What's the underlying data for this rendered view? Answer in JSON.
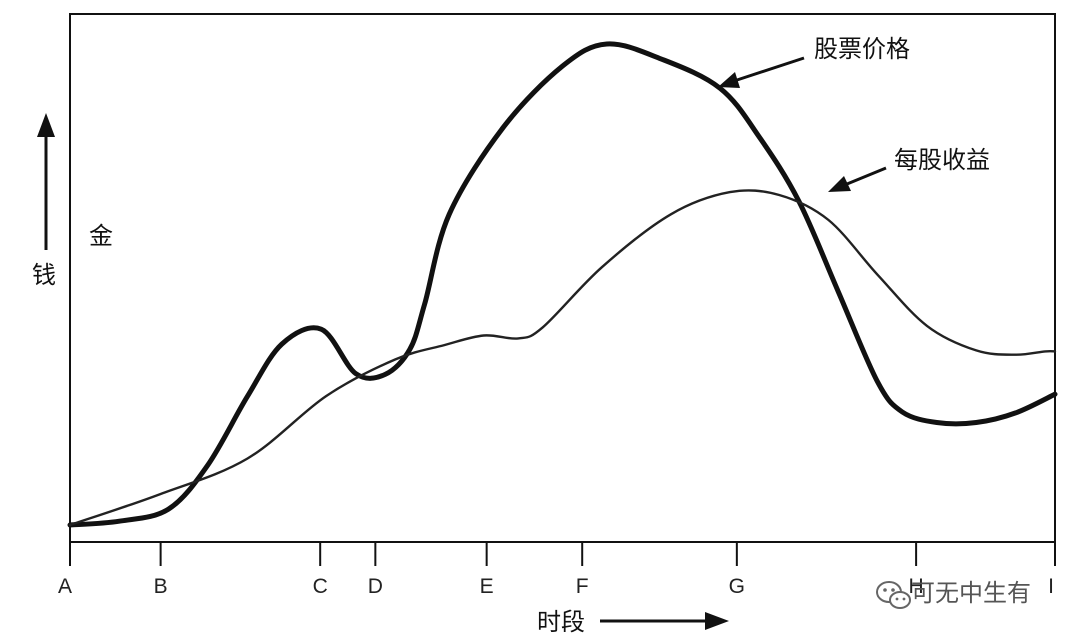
{
  "chart_data": {
    "type": "line",
    "title": "",
    "xlabel": "时段",
    "ylabel": "钱",
    "corner_label": "金",
    "categories": [
      "A",
      "B",
      "C",
      "D",
      "E",
      "F",
      "G",
      "H",
      "I"
    ],
    "x_ticks": [
      0,
      9.2,
      25.4,
      31,
      42.3,
      52,
      67.7,
      85.9,
      100
    ],
    "xlim": [
      0,
      100
    ],
    "ylim": [
      0,
      100
    ],
    "grid": false,
    "legend": "none",
    "series": [
      {
        "name": "股票价格",
        "line_weight": "heavy",
        "color": "#111111",
        "points": [
          [
            0,
            0
          ],
          [
            5,
            0.8
          ],
          [
            10,
            3.3
          ],
          [
            14,
            12.5
          ],
          [
            18,
            26.7
          ],
          [
            21.5,
            37.6
          ],
          [
            25.5,
            40.7
          ],
          [
            29,
            31.5
          ],
          [
            32,
            31.3
          ],
          [
            34.5,
            36.5
          ],
          [
            36,
            45.9
          ],
          [
            38.5,
            64.6
          ],
          [
            44,
            82.7
          ],
          [
            50,
            95.4
          ],
          [
            54.5,
            100
          ],
          [
            60,
            96.9
          ],
          [
            66,
            90.8
          ],
          [
            70,
            80.6
          ],
          [
            74,
            67.3
          ],
          [
            78,
            48.5
          ],
          [
            82,
            29.7
          ],
          [
            84.5,
            23.5
          ],
          [
            88,
            21.3
          ],
          [
            92,
            21.3
          ],
          [
            96,
            23.3
          ],
          [
            100,
            27.2
          ]
        ]
      },
      {
        "name": "每股收益",
        "line_weight": "light",
        "color": "#222222",
        "points": [
          [
            0,
            0
          ],
          [
            9,
            6.3
          ],
          [
            18,
            13.8
          ],
          [
            26,
            26.8
          ],
          [
            33,
            34.4
          ],
          [
            38,
            37.4
          ],
          [
            42,
            39.4
          ],
          [
            45.5,
            38.8
          ],
          [
            48,
            41.1
          ],
          [
            54,
            53.6
          ],
          [
            61,
            64.6
          ],
          [
            67,
            69.2
          ],
          [
            72,
            68.6
          ],
          [
            77,
            63.4
          ],
          [
            82,
            52
          ],
          [
            87,
            41.4
          ],
          [
            92,
            36.3
          ],
          [
            96,
            35.4
          ],
          [
            99,
            36.1
          ],
          [
            100,
            36.1
          ]
        ]
      }
    ],
    "annotations": [
      {
        "text": "股票价格",
        "target_series": "股票价格"
      },
      {
        "text": "每股收益",
        "target_series": "每股收益"
      }
    ]
  },
  "watermark": {
    "icon": "wechat-icon",
    "text": "可无中生有"
  },
  "colors": {
    "ink": "#111111",
    "background": "#ffffff"
  }
}
